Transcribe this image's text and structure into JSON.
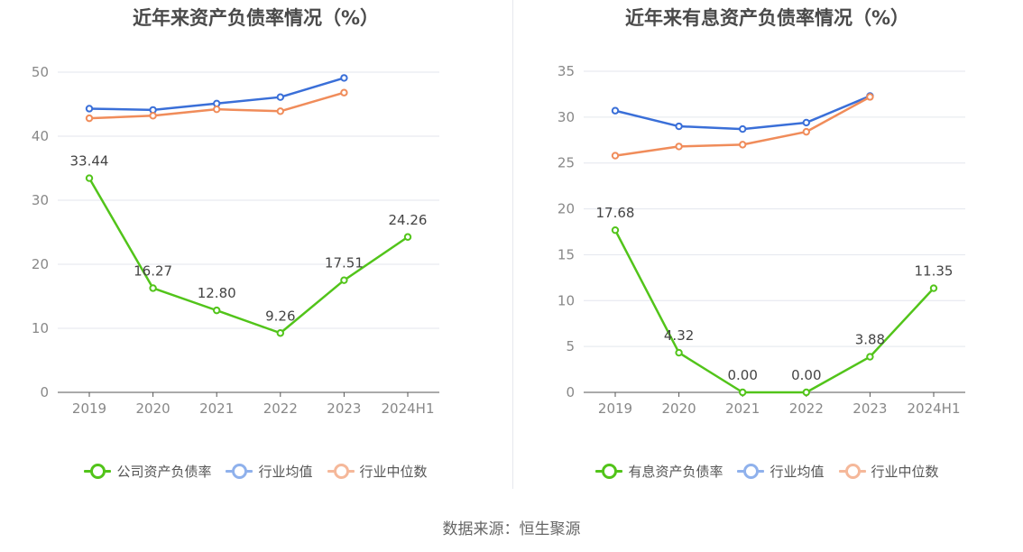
{
  "source": "数据来源：恒生聚源",
  "colors": {
    "company": "#52c41a",
    "avg": "#3a6fd8",
    "median": "#f08c5a",
    "legend_avg": "#8fb1ec",
    "legend_median": "#f5b89a"
  },
  "chart_data": [
    {
      "type": "line",
      "title": "近年来资产负债率情况（%）",
      "categories": [
        "2019",
        "2020",
        "2021",
        "2022",
        "2023",
        "2024H1"
      ],
      "ylim": [
        0,
        50
      ],
      "yticks": [
        0,
        10,
        20,
        30,
        40,
        50
      ],
      "grid": true,
      "legend_position": "bottom",
      "series": [
        {
          "name": "公司资产负债率",
          "values": [
            33.44,
            16.27,
            12.8,
            9.26,
            17.51,
            24.26
          ],
          "labels": [
            "33.44",
            "16.27",
            "12.80",
            "9.26",
            "17.51",
            "24.26"
          ]
        },
        {
          "name": "行业均值",
          "values": [
            44.3,
            44.1,
            45.1,
            46.1,
            49.1,
            null
          ]
        },
        {
          "name": "行业中位数",
          "values": [
            42.8,
            43.2,
            44.2,
            43.9,
            46.8,
            null
          ]
        }
      ]
    },
    {
      "type": "line",
      "title": "近年来有息资产负债率情况（%）",
      "categories": [
        "2019",
        "2020",
        "2021",
        "2022",
        "2023",
        "2024H1"
      ],
      "ylim": [
        0,
        35
      ],
      "yticks": [
        0,
        5,
        10,
        15,
        20,
        25,
        30,
        35
      ],
      "grid": true,
      "legend_position": "bottom",
      "series": [
        {
          "name": "有息资产负债率",
          "values": [
            17.68,
            4.32,
            0.0,
            0.0,
            3.88,
            11.35
          ],
          "labels": [
            "17.68",
            "4.32",
            "0.00",
            "0.00",
            "3.88",
            "11.35"
          ]
        },
        {
          "name": "行业均值",
          "values": [
            30.7,
            29.0,
            28.7,
            29.4,
            32.3,
            null
          ]
        },
        {
          "name": "行业中位数",
          "values": [
            25.8,
            26.8,
            27.0,
            28.4,
            32.2,
            null
          ]
        }
      ]
    }
  ]
}
